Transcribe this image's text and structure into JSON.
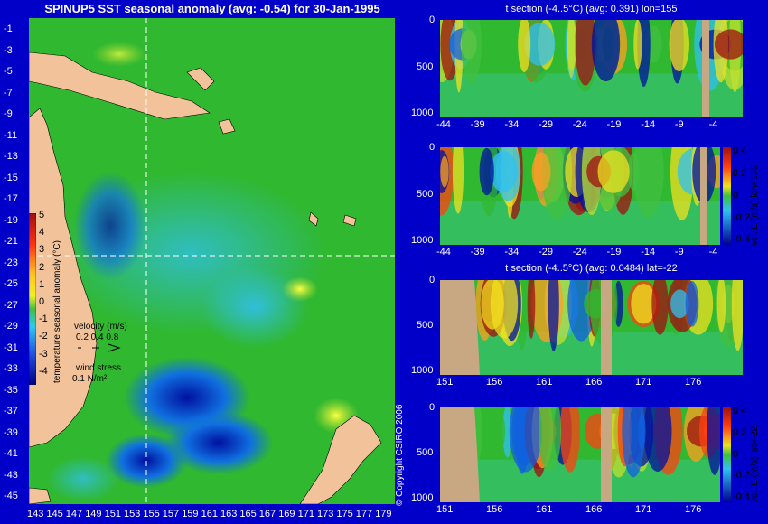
{
  "main": {
    "title": "SPINUP5 SST seasonal anomaly (avg: -0.54) for 30-Jan-1995",
    "colorbar_label": "temperature seasonal anomaly (°C)",
    "velocity_label": "velocity (m/s)",
    "velocity_scale": "0.2 0.4 0.8",
    "wind_label": "wind stress",
    "wind_scale": "0.1 N/m²",
    "copyright": "© Copyright CSIRO 2006"
  },
  "panels": {
    "p1_title": "t section (-4..5°C) (avg: 0.391) lon=155",
    "p3_title": "t section (-4..5°C) (avg: 0.0484) lat=-22",
    "p2_cbar_label": "vel. E (m/s) lon=155",
    "p4_cbar_label": "vel. E (m/s) lat=-22"
  },
  "chart_data": [
    {
      "type": "heatmap",
      "title": "SPINUP5 SST seasonal anomaly (avg: -0.54) for 30-Jan-1995",
      "x_ticks": [
        "143",
        "145",
        "147",
        "149",
        "151",
        "153",
        "155",
        "157",
        "159",
        "161",
        "163",
        "165",
        "167",
        "169",
        "171",
        "173",
        "175",
        "177",
        "179"
      ],
      "y_ticks": [
        "-1",
        "-3",
        "-5",
        "-7",
        "-9",
        "-11",
        "-13",
        "-15",
        "-17",
        "-19",
        "-21",
        "-23",
        "-25",
        "-27",
        "-29",
        "-31",
        "-33",
        "-35",
        "-37",
        "-39",
        "-41",
        "-43",
        "-45"
      ],
      "xlim": [
        143,
        180
      ],
      "ylim": [
        -45,
        0
      ],
      "colorbar": {
        "min": -4,
        "max": 5,
        "ticks": [
          "5",
          "4",
          "3",
          "2",
          "1",
          "0",
          "-1",
          "-2",
          "-3",
          "-4"
        ]
      },
      "section_lines": {
        "lon": 155,
        "lat": -22
      }
    },
    {
      "type": "heatmap",
      "title": "t section (-4..5°C) (avg: 0.391) lon=155",
      "x_ticks": [
        "-44",
        "-39",
        "-34",
        "-29",
        "-24",
        "-19",
        "-14",
        "-9",
        "-4"
      ],
      "y_ticks": [
        "0",
        "500",
        "1000"
      ],
      "xlim": [
        -45,
        0
      ],
      "ylim": [
        1050,
        0
      ]
    },
    {
      "type": "heatmap",
      "title": "",
      "x_ticks": [
        "-44",
        "-39",
        "-34",
        "-29",
        "-24",
        "-19",
        "-14",
        "-9",
        "-4"
      ],
      "y_ticks": [
        "0",
        "500",
        "1000"
      ],
      "xlim": [
        -45,
        0
      ],
      "ylim": [
        1050,
        0
      ],
      "colorbar": {
        "min": -0.4,
        "max": 0.4,
        "ticks": [
          "0.4",
          "0.2",
          "0",
          "-0.2",
          "-0.4"
        ],
        "label": "vel. E (m/s) lon=155"
      }
    },
    {
      "type": "heatmap",
      "title": "t section (-4..5°C) (avg: 0.0484) lat=-22",
      "x_ticks": [
        "151",
        "156",
        "161",
        "166",
        "171",
        "176"
      ],
      "y_ticks": [
        "0",
        "500",
        "1000"
      ],
      "xlim": [
        150,
        180
      ],
      "ylim": [
        1050,
        0
      ]
    },
    {
      "type": "heatmap",
      "title": "",
      "x_ticks": [
        "151",
        "156",
        "161",
        "166",
        "171",
        "176"
      ],
      "y_ticks": [
        "0",
        "500",
        "1000"
      ],
      "xlim": [
        150,
        180
      ],
      "ylim": [
        1050,
        0
      ],
      "colorbar": {
        "min": -0.4,
        "max": 0.4,
        "ticks": [
          "0.4",
          "0.2",
          "0",
          "-0.2",
          "-0.4"
        ],
        "label": "vel. E (m/s) lat=-22"
      }
    }
  ]
}
